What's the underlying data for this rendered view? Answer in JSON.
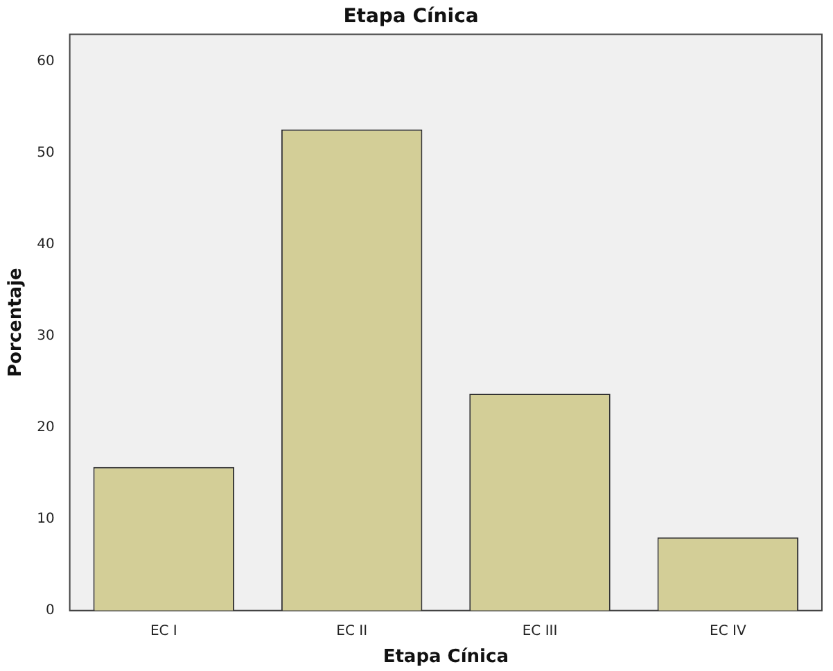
{
  "chart_data": {
    "type": "bar",
    "title": "Etapa Cínica",
    "xlabel": "Etapa Cínica",
    "ylabel": "Porcentaje",
    "categories": [
      "EC I",
      "EC II",
      "EC III",
      "EC IV"
    ],
    "values": [
      15.7,
      52.6,
      23.7,
      8.0
    ],
    "color": "#d3ce97",
    "ylim": [
      0,
      63
    ],
    "yticks": [
      0,
      10,
      20,
      30,
      40,
      50,
      60
    ],
    "grid": false,
    "legend": false
  }
}
